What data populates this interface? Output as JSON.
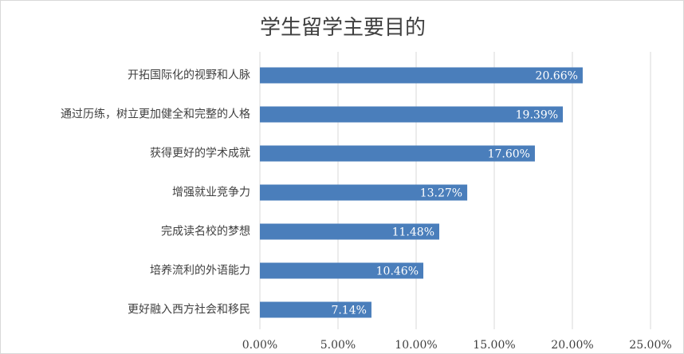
{
  "chart_data": {
    "type": "bar",
    "orientation": "horizontal",
    "title": "学生留学主要目的",
    "categories": [
      "开拓国际化的视野和人脉",
      "通过历练，树立更加健全和完整的人格",
      "获得更好的学术成就",
      "增强就业竞争力",
      "完成读名校的梦想",
      "培养流利的外语能力",
      "更好融入西方社会和移民"
    ],
    "values": [
      20.66,
      19.39,
      17.6,
      13.27,
      11.48,
      10.46,
      7.14
    ],
    "value_labels": [
      "20.66%",
      "19.39%",
      "17.60%",
      "13.27%",
      "11.48%",
      "10.46%",
      "7.14%"
    ],
    "color": "#4a7ebb",
    "xlim": [
      0,
      25
    ],
    "xticks": [
      {
        "value": 0,
        "label": "0.00%"
      },
      {
        "value": 5,
        "label": "5.00%"
      },
      {
        "value": 10,
        "label": "10.00%"
      },
      {
        "value": 15,
        "label": "15.00%"
      },
      {
        "value": 20,
        "label": "20.00%"
      },
      {
        "value": 25,
        "label": "25.00%"
      }
    ],
    "grid": true
  }
}
